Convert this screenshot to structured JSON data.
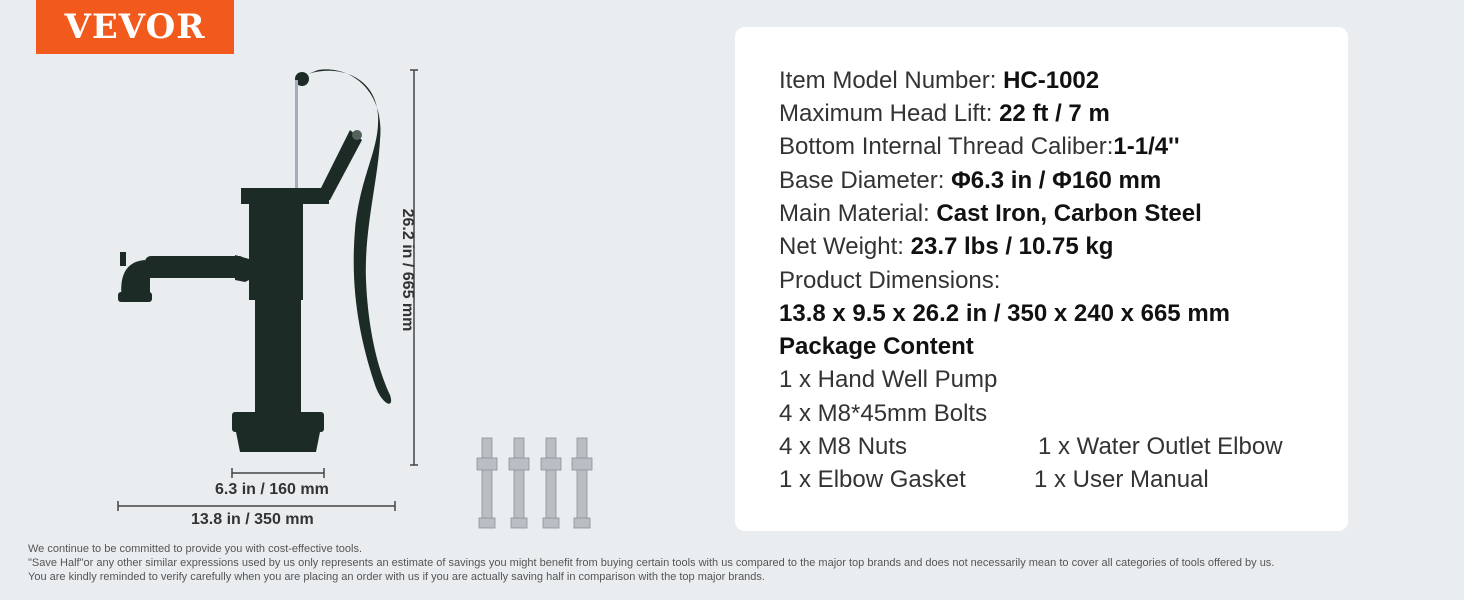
{
  "brand": {
    "logo": "VEVOR",
    "color": "#f25a1d"
  },
  "dimensions": {
    "height": "26.2 in / 665 mm",
    "base": "6.3 in / 160 mm",
    "width": "13.8 in / 350 mm"
  },
  "specs": [
    {
      "label": "Item Model Number: ",
      "value": "HC-1002"
    },
    {
      "label": "Maximum Head Lift: ",
      "value": "22 ft / 7 m"
    },
    {
      "label": "Bottom Internal Thread Caliber:",
      "value": "1-1/4''"
    },
    {
      "label": "Base Diameter: ",
      "value": "Φ6.3 in / Φ160 mm"
    },
    {
      "label": "Main Material: ",
      "value": "Cast Iron, Carbon Steel"
    },
    {
      "label": "Net Weight: ",
      "value": "23.7 lbs / 10.75 kg"
    },
    {
      "label": "Product Dimensions:",
      "value": ""
    }
  ],
  "dimensions_value": "13.8 x 9.5 x 26.2 in / 350 x 240 x 665 mm",
  "package": {
    "title": "Package Content",
    "items": [
      "1 x Hand Well Pump",
      "4 x M8*45mm Bolts",
      "4 x M8 Nuts",
      "1 x Water Outlet Elbow",
      "1 x Elbow Gasket",
      "1 x User Manual"
    ]
  },
  "disclaimer": [
    "We continue to be committed to provide you with cost-effective tools.",
    "\"Save Half\"or any other similar expressions used by us only represents an estimate of savings you might benefit from buying certain tools with us compared to the major top brands and does not necessarily mean to cover all categories of tools offered by us.",
    "You are kindly reminded to verify carefully when you are placing an order with us if you are actually saving half in comparison with the top major brands."
  ]
}
